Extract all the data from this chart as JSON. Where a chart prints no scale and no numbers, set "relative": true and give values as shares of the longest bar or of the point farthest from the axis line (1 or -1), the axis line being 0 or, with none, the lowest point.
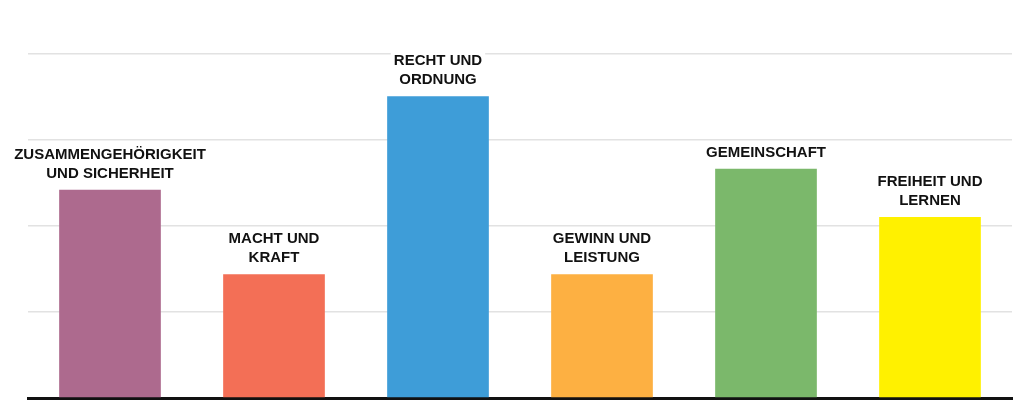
{
  "chart_data": {
    "type": "bar",
    "categories": [
      "ZUSAMMENGEHÖRIGKEIT UND SICHERHEIT",
      "MACHT UND KRAFT",
      "RECHT UND ORDNUNG",
      "GEWINN UND LEISTUNG",
      "GEMEINSCHAFT",
      "FREIHEIT UND LERNEN"
    ],
    "values": [
      0.69,
      0.41,
      1,
      0.41,
      0.76,
      0.6
    ],
    "colors": [
      "#ad6a8e",
      "#f36f56",
      "#3e9dd8",
      "#fdb042",
      "#7bb86b",
      "#fff100"
    ],
    "relative": true,
    "grid": "y"
  }
}
